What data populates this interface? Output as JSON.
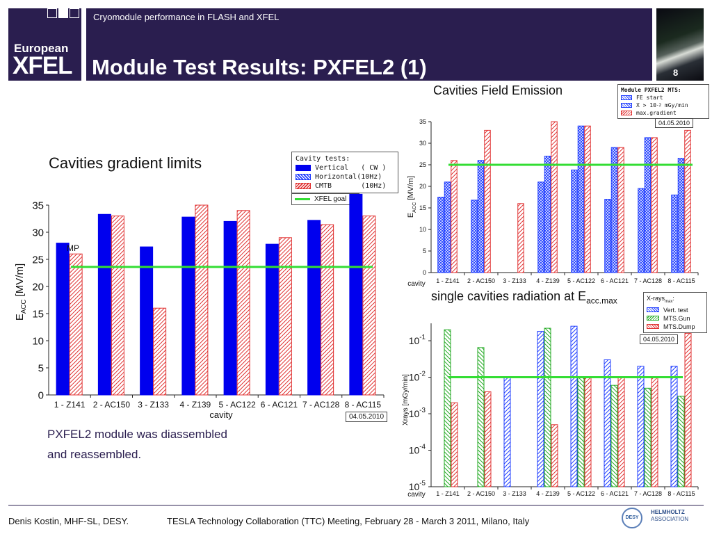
{
  "header": {
    "logo_line1": "European",
    "logo_line2": "XFEL",
    "subtitle": "Cryomodule performance in FLASH and XFEL",
    "title": "Module Test Results: PXFEL2 (1)",
    "page_number": "8"
  },
  "footer": {
    "author": "Denis Kostin, MHF-SL, DESY.",
    "meeting": "TESLA Technology Collaboration (TTC) Meeting, February 28 - March 3 2011, Milano, Italy",
    "logo_desy": "DESY",
    "logo_helmholtz_1": "HELMHOLTZ",
    "logo_helmholtz_2": "ASSOCIATION"
  },
  "labels": {
    "gradient_heading": "Cavities gradient limits",
    "note_line1": "PXFEL2 module was diassembled",
    "note_line2": "and reassembled.",
    "fe_heading": "Cavities Field Emission",
    "rad_heading": "single cavities radiation at E",
    "rad_heading_sub": "acc.max"
  },
  "chart_data": [
    {
      "id": "gradient",
      "type": "bar",
      "categories": [
        "1 - Z141",
        "2 - AC150",
        "3 - Z133",
        "4 - Z139",
        "5 - AC122",
        "6 - AC121",
        "7 - AC128",
        "8 - AC115"
      ],
      "series": [
        {
          "name": "Vertical   ( CW )",
          "values": [
            28.0,
            33.3,
            27.3,
            32.8,
            32.0,
            27.8,
            32.2,
            37.0
          ],
          "color": "#0000ee"
        },
        {
          "name": "Horizontal(10Hz)",
          "values": [
            null,
            null,
            null,
            null,
            null,
            null,
            null,
            null
          ],
          "color": "#1e3cff"
        },
        {
          "name": "CMTB       (10Hz)",
          "values": [
            26.0,
            33.0,
            16.0,
            35.0,
            34.0,
            29.0,
            31.4,
            33.0
          ],
          "color": "#e03030"
        }
      ],
      "reference": {
        "name": "XFEL goal",
        "value": 23.6,
        "color": "#33dd33"
      },
      "annotation": "MP",
      "legend_title": "Cavity tests:",
      "xlabel": "cavity",
      "ylabel": "E",
      "ylabel_sub": "ACC",
      "ylabel_unit": " [MV/m]",
      "ylim": [
        0,
        35
      ],
      "yticks": [
        0,
        5,
        10,
        15,
        20,
        25,
        30,
        35
      ],
      "date": "04.05.2010"
    },
    {
      "id": "field_emission",
      "type": "bar",
      "categories": [
        "1 - Z141",
        "2 - AC150",
        "3 - Z133",
        "4 - Z139",
        "5 - AC122",
        "6 - AC121",
        "7 - AC128",
        "8 - AC115"
      ],
      "series": [
        {
          "name": "FE start",
          "values": [
            17.5,
            16.8,
            null,
            21.0,
            23.8,
            17.0,
            19.5,
            18.0
          ],
          "color": "#1e3cff"
        },
        {
          "name": "X > 10",
          "values": [
            21.0,
            26.0,
            null,
            27.0,
            34.0,
            29.0,
            31.3,
            26.5
          ],
          "color": "#1e3cff"
        },
        {
          "name": "max.gradient",
          "values": [
            26.0,
            33.0,
            16.0,
            35.0,
            34.0,
            29.0,
            31.3,
            33.0
          ],
          "color": "#e03030"
        }
      ],
      "reference": {
        "name": "",
        "value": 25.0,
        "color": "#33dd33"
      },
      "legend_title": "Module PXFEL2 MTS:",
      "legend_x_suffix": " mGy/min",
      "legend_x_exp": "-2",
      "xlabel": "cavity",
      "ylabel": "E",
      "ylabel_sub": "ACC",
      "ylabel_unit": " [MV/m]",
      "ylim": [
        0,
        35
      ],
      "yticks": [
        0,
        5,
        10,
        15,
        20,
        25,
        30,
        35
      ],
      "date": "04.05.2010"
    },
    {
      "id": "radiation",
      "type": "bar",
      "log_y": true,
      "categories": [
        "1 - Z141",
        "2 - AC150",
        "3 - Z133",
        "4 - Z139",
        "5 - AC122",
        "6 - AC121",
        "7 - AC128",
        "8 - AC115"
      ],
      "series": [
        {
          "name": "Vert. test",
          "values": [
            null,
            null,
            0.01,
            0.18,
            0.25,
            0.03,
            0.02,
            0.02
          ],
          "color": "#1e3cff"
        },
        {
          "name": "MTS.Gun",
          "values": [
            0.2,
            0.065,
            null,
            0.22,
            0.01,
            0.006,
            0.005,
            0.003
          ],
          "color": "#22aa22"
        },
        {
          "name": "MTS.Dump",
          "values": [
            0.002,
            0.004,
            null,
            0.0005,
            0.01,
            0.01,
            0.01,
            0.16
          ],
          "color": "#e03030"
        }
      ],
      "reference": {
        "name": "",
        "value": 0.01,
        "color": "#33dd33"
      },
      "legend_title": "X-rays",
      "legend_title_sub": "max",
      "legend_title_suffix": ":",
      "xlabel": "cavity",
      "ylabel": "Xrays [mGy/min]",
      "ylim": [
        1e-05,
        0.3
      ],
      "yticks_base": "10",
      "yticks_exp": [
        "-5",
        "-4",
        "-3",
        "-2",
        "-1"
      ],
      "date": "04.05.2010"
    }
  ]
}
